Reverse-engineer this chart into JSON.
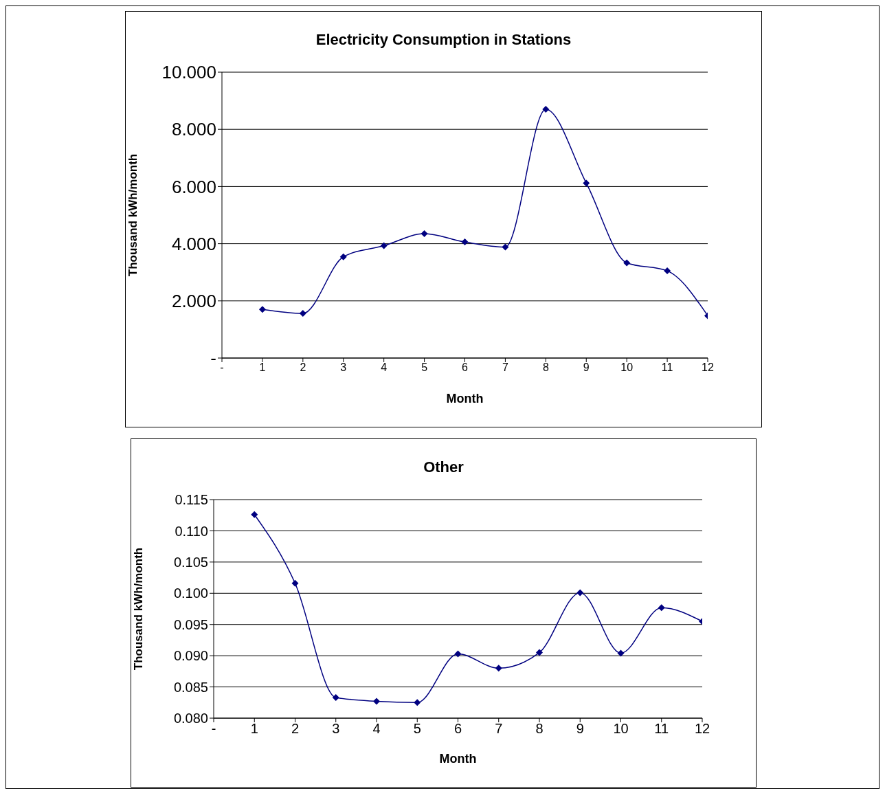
{
  "chart_data": [
    {
      "type": "line",
      "title": "Electricity Consumption in Stations",
      "xlabel": "Month",
      "ylabel": "Thousand kWh/month",
      "x": [
        1,
        2,
        3,
        4,
        5,
        6,
        7,
        8,
        9,
        10,
        11,
        12
      ],
      "series": [
        {
          "color": "#000080",
          "values": [
            1.7,
            1.56,
            3.54,
            3.93,
            4.35,
            4.06,
            3.88,
            8.7,
            6.12,
            3.33,
            3.05,
            1.48
          ]
        }
      ],
      "xlim": [
        0,
        12
      ],
      "xticks": [
        {
          "value": 0,
          "label": "-"
        },
        1,
        2,
        3,
        4,
        5,
        6,
        7,
        8,
        9,
        10,
        11,
        12
      ],
      "ylim": [
        0,
        10
      ],
      "yticks": [
        {
          "value": 0,
          "label": "-"
        },
        {
          "value": 2,
          "label": "2.000"
        },
        {
          "value": 4,
          "label": "4.000"
        },
        {
          "value": 6,
          "label": "6.000"
        },
        {
          "value": 8,
          "label": "8.000"
        },
        {
          "value": 10,
          "label": "10.000"
        }
      ],
      "grid": "y",
      "legend": false,
      "marker": "diamond",
      "line_style": "solid"
    },
    {
      "type": "line",
      "title": "Other",
      "xlabel": "Month",
      "ylabel": "Thousand kWh/month",
      "x": [
        1,
        2,
        3,
        4,
        5,
        6,
        7,
        8,
        9,
        10,
        11,
        12
      ],
      "series": [
        {
          "color": "#000080",
          "values": [
            0.1126,
            0.1016,
            0.0833,
            0.0827,
            0.0825,
            0.0903,
            0.088,
            0.0905,
            0.1001,
            0.0904,
            0.0977,
            0.0955
          ]
        }
      ],
      "xlim": [
        0,
        12
      ],
      "xticks": [
        {
          "value": 0,
          "label": "-"
        },
        1,
        2,
        3,
        4,
        5,
        6,
        7,
        8,
        9,
        10,
        11,
        12
      ],
      "ylim": [
        0.08,
        0.115
      ],
      "yticks": [
        {
          "value": 0.08,
          "label": "0.080"
        },
        {
          "value": 0.085,
          "label": "0.085"
        },
        {
          "value": 0.09,
          "label": "0.090"
        },
        {
          "value": 0.095,
          "label": "0.095"
        },
        {
          "value": 0.1,
          "label": "0.100"
        },
        {
          "value": 0.105,
          "label": "0.105"
        },
        {
          "value": 0.11,
          "label": "0.110"
        },
        {
          "value": 0.115,
          "label": "0.115"
        }
      ],
      "grid": "y",
      "legend": false,
      "marker": "diamond",
      "line_style": "solid"
    }
  ]
}
